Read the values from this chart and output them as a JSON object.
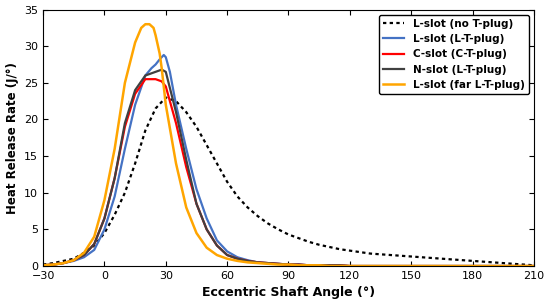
{
  "title": "",
  "xlabel": "Eccentric Shaft Angle (°)",
  "ylabel": "Heat Release Rate (J/°)",
  "xlim": [
    -30,
    210
  ],
  "ylim": [
    0,
    35
  ],
  "xticks": [
    -30,
    0,
    30,
    60,
    90,
    120,
    150,
    180,
    210
  ],
  "yticks": [
    0,
    5,
    10,
    15,
    20,
    25,
    30,
    35
  ],
  "series": [
    {
      "label": "L-slot (no T-plug)",
      "color": "#000000",
      "linestyle": "dotted",
      "linewidth": 1.6,
      "x": [
        -30,
        -25,
        -20,
        -15,
        -10,
        -5,
        0,
        5,
        10,
        15,
        20,
        25,
        30,
        35,
        40,
        45,
        50,
        55,
        60,
        65,
        70,
        75,
        80,
        85,
        90,
        95,
        100,
        105,
        110,
        115,
        120,
        125,
        130,
        135,
        140,
        145,
        150,
        155,
        160,
        165,
        170,
        175,
        180,
        185,
        190,
        195,
        200,
        205,
        210
      ],
      "y": [
        0.2,
        0.4,
        0.7,
        1.0,
        1.8,
        2.8,
        4.5,
        7.0,
        10.0,
        14.0,
        18.5,
        21.5,
        23.0,
        22.5,
        21.0,
        19.0,
        16.5,
        14.0,
        11.5,
        9.5,
        8.0,
        6.8,
        5.8,
        5.0,
        4.3,
        3.8,
        3.3,
        2.9,
        2.6,
        2.3,
        2.1,
        1.9,
        1.7,
        1.6,
        1.5,
        1.4,
        1.3,
        1.2,
        1.1,
        1.0,
        0.9,
        0.8,
        0.7,
        0.6,
        0.5,
        0.4,
        0.3,
        0.2,
        0.1
      ]
    },
    {
      "label": "L-slot (L-T-plug)",
      "color": "#4472c4",
      "linestyle": "solid",
      "linewidth": 1.6,
      "x": [
        -30,
        -25,
        -20,
        -15,
        -10,
        -5,
        0,
        5,
        10,
        15,
        20,
        23,
        25,
        27,
        29,
        30,
        32,
        35,
        40,
        45,
        50,
        55,
        60,
        65,
        70,
        75,
        80,
        85,
        90,
        95,
        100,
        105,
        110,
        115,
        120,
        125,
        130,
        135,
        140,
        145,
        150,
        155,
        160,
        165,
        170,
        175,
        180,
        185,
        190,
        195,
        200,
        205,
        210
      ],
      "y": [
        0.1,
        0.2,
        0.4,
        0.7,
        1.2,
        2.2,
        5.0,
        9.5,
        16.0,
        22.0,
        26.0,
        27.0,
        27.5,
        28.2,
        28.8,
        28.5,
        26.5,
        22.0,
        16.0,
        10.5,
        6.5,
        3.5,
        2.0,
        1.2,
        0.8,
        0.5,
        0.4,
        0.3,
        0.2,
        0.2,
        0.1,
        0.1,
        0.1,
        0.1,
        0.0,
        0.0,
        0.0,
        0.0,
        0.0,
        0.0,
        0.0,
        0.0,
        0.0,
        0.0,
        0.0,
        0.0,
        0.0,
        0.0,
        0.0,
        0.0,
        0.0,
        0.0,
        0.0
      ]
    },
    {
      "label": "C-slot (C-T-plug)",
      "color": "#ff0000",
      "linestyle": "solid",
      "linewidth": 1.6,
      "x": [
        -30,
        -25,
        -20,
        -15,
        -10,
        -5,
        0,
        5,
        10,
        15,
        20,
        25,
        28,
        30,
        35,
        40,
        45,
        50,
        55,
        60,
        65,
        70,
        75,
        80,
        85,
        90,
        95,
        100,
        105,
        110,
        115,
        120,
        125,
        130,
        135,
        140,
        145,
        150,
        155,
        160,
        165,
        170,
        175,
        180,
        185,
        190,
        195,
        200,
        205,
        210
      ],
      "y": [
        0.1,
        0.2,
        0.4,
        0.8,
        1.5,
        3.0,
        6.5,
        12.0,
        19.0,
        23.5,
        25.5,
        25.5,
        25.2,
        24.5,
        19.5,
        13.5,
        8.5,
        5.0,
        2.8,
        1.5,
        1.0,
        0.7,
        0.5,
        0.4,
        0.3,
        0.2,
        0.2,
        0.1,
        0.1,
        0.1,
        0.1,
        0.0,
        0.0,
        0.0,
        0.0,
        0.0,
        0.0,
        0.0,
        0.0,
        0.0,
        0.0,
        0.0,
        0.0,
        0.0,
        0.0,
        0.0,
        0.0,
        0.0,
        0.0,
        0.0
      ]
    },
    {
      "label": "N-slot (L-T-plug)",
      "color": "#404040",
      "linestyle": "solid",
      "linewidth": 1.6,
      "x": [
        -30,
        -25,
        -20,
        -15,
        -10,
        -5,
        0,
        5,
        10,
        15,
        20,
        25,
        28,
        30,
        35,
        40,
        45,
        50,
        55,
        60,
        65,
        70,
        75,
        80,
        85,
        90,
        95,
        100,
        105,
        110,
        115,
        120,
        125,
        130,
        135,
        140,
        145,
        150,
        155,
        160,
        165,
        170,
        175,
        180,
        185,
        190,
        195,
        200,
        205,
        210
      ],
      "y": [
        0.1,
        0.2,
        0.4,
        0.8,
        1.5,
        3.0,
        6.5,
        12.0,
        19.5,
        24.0,
        26.0,
        26.5,
        26.8,
        26.5,
        21.0,
        14.5,
        8.5,
        5.0,
        2.8,
        1.5,
        1.0,
        0.7,
        0.5,
        0.4,
        0.3,
        0.2,
        0.2,
        0.1,
        0.1,
        0.1,
        0.1,
        0.0,
        0.0,
        0.0,
        0.0,
        0.0,
        0.0,
        0.0,
        0.0,
        0.0,
        0.0,
        0.0,
        0.0,
        0.0,
        0.0,
        0.0,
        0.0,
        0.0,
        0.0,
        0.0
      ]
    },
    {
      "label": "L-slot (far L-T-plug)",
      "color": "#ffa500",
      "linestyle": "solid",
      "linewidth": 1.8,
      "x": [
        -30,
        -25,
        -20,
        -15,
        -10,
        -5,
        0,
        5,
        10,
        15,
        18,
        20,
        22,
        24,
        25,
        27,
        28,
        30,
        35,
        40,
        45,
        50,
        55,
        60,
        65,
        70,
        75,
        80,
        85,
        90,
        95,
        100,
        105,
        110,
        115,
        120,
        125,
        130,
        135,
        140,
        145,
        150,
        155,
        160,
        165,
        170,
        175,
        180,
        185,
        190,
        195,
        200,
        205,
        210
      ],
      "y": [
        0.1,
        0.2,
        0.4,
        0.8,
        1.8,
        4.0,
        9.0,
        16.0,
        25.0,
        30.5,
        32.5,
        33.0,
        33.0,
        32.5,
        31.5,
        29.0,
        27.0,
        22.0,
        14.0,
        8.0,
        4.5,
        2.5,
        1.5,
        1.0,
        0.7,
        0.5,
        0.4,
        0.3,
        0.2,
        0.2,
        0.1,
        0.1,
        0.1,
        0.0,
        0.0,
        0.0,
        0.0,
        0.0,
        0.0,
        0.0,
        0.0,
        0.0,
        0.0,
        0.0,
        0.0,
        0.0,
        0.0,
        0.0,
        0.0,
        0.0,
        0.0,
        0.0,
        0.0,
        0.0
      ]
    }
  ],
  "legend_loc": "upper right",
  "bg_color": "#ffffff"
}
